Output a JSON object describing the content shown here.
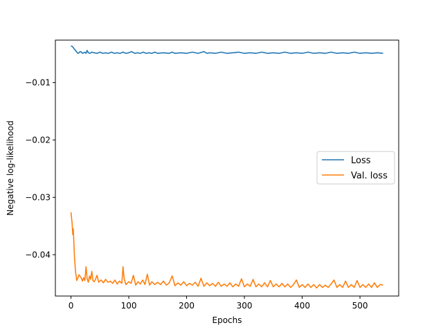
{
  "chart_data": {
    "type": "line",
    "title": "",
    "xlabel": "Epochs",
    "ylabel": "Negative log-likelihood",
    "xlim": [
      -27,
      567
    ],
    "ylim": [
      -0.0472,
      -0.0026
    ],
    "xticks": [
      0,
      100,
      200,
      300,
      400,
      500
    ],
    "yticks": [
      -0.01,
      -0.02,
      -0.03,
      -0.04
    ],
    "xtick_labels": [
      "0",
      "100",
      "200",
      "300",
      "400",
      "500"
    ],
    "ytick_labels": [
      "−0.01",
      "−0.02",
      "−0.03",
      "−0.04"
    ],
    "grid": false,
    "legend_placement": "center-right",
    "series": [
      {
        "name": "Loss",
        "color": "#1f77b4",
        "points": [
          [
            0,
            -0.0036
          ],
          [
            2,
            -0.0037
          ],
          [
            4,
            -0.0039
          ],
          [
            6,
            -0.0042
          ],
          [
            8,
            -0.0044
          ],
          [
            10,
            -0.0047
          ],
          [
            12,
            -0.0049
          ],
          [
            14,
            -0.0048
          ],
          [
            16,
            -0.0046
          ],
          [
            18,
            -0.0047
          ],
          [
            20,
            -0.0049
          ],
          [
            22,
            -0.0048
          ],
          [
            24,
            -0.0047
          ],
          [
            26,
            -0.0049
          ],
          [
            28,
            -0.0044
          ],
          [
            30,
            -0.0048
          ],
          [
            33,
            -0.0049
          ],
          [
            36,
            -0.0047
          ],
          [
            40,
            -0.0048
          ],
          [
            45,
            -0.0049
          ],
          [
            50,
            -0.0047
          ],
          [
            55,
            -0.0049
          ],
          [
            60,
            -0.0048
          ],
          [
            65,
            -0.0049
          ],
          [
            70,
            -0.0047
          ],
          [
            75,
            -0.0049
          ],
          [
            80,
            -0.0048
          ],
          [
            85,
            -0.0049
          ],
          [
            90,
            -0.0047
          ],
          [
            95,
            -0.0049
          ],
          [
            100,
            -0.0048
          ],
          [
            105,
            -0.0046
          ],
          [
            110,
            -0.0049
          ],
          [
            115,
            -0.0048
          ],
          [
            120,
            -0.0049
          ],
          [
            125,
            -0.0047
          ],
          [
            130,
            -0.0049
          ],
          [
            135,
            -0.0048
          ],
          [
            140,
            -0.0049
          ],
          [
            145,
            -0.0047
          ],
          [
            150,
            -0.0049
          ],
          [
            160,
            -0.0048
          ],
          [
            170,
            -0.0049
          ],
          [
            175,
            -0.0047
          ],
          [
            180,
            -0.0049
          ],
          [
            190,
            -0.0048
          ],
          [
            200,
            -0.0049
          ],
          [
            210,
            -0.0047
          ],
          [
            220,
            -0.0049
          ],
          [
            230,
            -0.0046
          ],
          [
            235,
            -0.0049
          ],
          [
            240,
            -0.0048
          ],
          [
            250,
            -0.0049
          ],
          [
            260,
            -0.0047
          ],
          [
            270,
            -0.0049
          ],
          [
            280,
            -0.0048
          ],
          [
            290,
            -0.0047
          ],
          [
            300,
            -0.0049
          ],
          [
            310,
            -0.0048
          ],
          [
            320,
            -0.0049
          ],
          [
            330,
            -0.0047
          ],
          [
            340,
            -0.0049
          ],
          [
            350,
            -0.0048
          ],
          [
            360,
            -0.0049
          ],
          [
            370,
            -0.0047
          ],
          [
            380,
            -0.0049
          ],
          [
            390,
            -0.0048
          ],
          [
            400,
            -0.0049
          ],
          [
            410,
            -0.0047
          ],
          [
            420,
            -0.0049
          ],
          [
            430,
            -0.0048
          ],
          [
            440,
            -0.0049
          ],
          [
            450,
            -0.0047
          ],
          [
            460,
            -0.0049
          ],
          [
            470,
            -0.0048
          ],
          [
            480,
            -0.0049
          ],
          [
            490,
            -0.0047
          ],
          [
            500,
            -0.0049
          ],
          [
            510,
            -0.0048
          ],
          [
            520,
            -0.0049
          ],
          [
            530,
            -0.0048
          ],
          [
            540,
            -0.0049
          ]
        ]
      },
      {
        "name": "Val. loss",
        "color": "#ff7f0e",
        "points": [
          [
            0,
            -0.0326
          ],
          [
            2,
            -0.0345
          ],
          [
            3,
            -0.0365
          ],
          [
            4,
            -0.0355
          ],
          [
            6,
            -0.0405
          ],
          [
            8,
            -0.043
          ],
          [
            10,
            -0.0445
          ],
          [
            12,
            -0.044
          ],
          [
            14,
            -0.0435
          ],
          [
            16,
            -0.0438
          ],
          [
            18,
            -0.0441
          ],
          [
            20,
            -0.0446
          ],
          [
            22,
            -0.044
          ],
          [
            24,
            -0.0445
          ],
          [
            26,
            -0.0421
          ],
          [
            28,
            -0.0442
          ],
          [
            30,
            -0.0448
          ],
          [
            32,
            -0.0437
          ],
          [
            34,
            -0.0443
          ],
          [
            36,
            -0.0429
          ],
          [
            38,
            -0.0445
          ],
          [
            40,
            -0.0447
          ],
          [
            42,
            -0.0444
          ],
          [
            45,
            -0.0436
          ],
          [
            48,
            -0.0448
          ],
          [
            52,
            -0.0444
          ],
          [
            56,
            -0.0449
          ],
          [
            60,
            -0.0443
          ],
          [
            64,
            -0.0448
          ],
          [
            68,
            -0.0446
          ],
          [
            72,
            -0.045
          ],
          [
            76,
            -0.0444
          ],
          [
            80,
            -0.0451
          ],
          [
            84,
            -0.0446
          ],
          [
            88,
            -0.045
          ],
          [
            90,
            -0.0421
          ],
          [
            92,
            -0.0442
          ],
          [
            95,
            -0.0452
          ],
          [
            100,
            -0.0447
          ],
          [
            104,
            -0.045
          ],
          [
            108,
            -0.0436
          ],
          [
            112,
            -0.0453
          ],
          [
            116,
            -0.0447
          ],
          [
            120,
            -0.0451
          ],
          [
            124,
            -0.0444
          ],
          [
            128,
            -0.0452
          ],
          [
            132,
            -0.0434
          ],
          [
            136,
            -0.0453
          ],
          [
            140,
            -0.0447
          ],
          [
            145,
            -0.0452
          ],
          [
            150,
            -0.0448
          ],
          [
            155,
            -0.0452
          ],
          [
            160,
            -0.0446
          ],
          [
            165,
            -0.0453
          ],
          [
            170,
            -0.0449
          ],
          [
            175,
            -0.0437
          ],
          [
            180,
            -0.0454
          ],
          [
            185,
            -0.0449
          ],
          [
            190,
            -0.0453
          ],
          [
            195,
            -0.0447
          ],
          [
            200,
            -0.0454
          ],
          [
            205,
            -0.045
          ],
          [
            210,
            -0.0453
          ],
          [
            215,
            -0.0448
          ],
          [
            220,
            -0.0455
          ],
          [
            225,
            -0.0441
          ],
          [
            230,
            -0.0455
          ],
          [
            235,
            -0.0449
          ],
          [
            240,
            -0.0454
          ],
          [
            245,
            -0.045
          ],
          [
            250,
            -0.0455
          ],
          [
            255,
            -0.0448
          ],
          [
            260,
            -0.0455
          ],
          [
            265,
            -0.0451
          ],
          [
            270,
            -0.0455
          ],
          [
            275,
            -0.0449
          ],
          [
            280,
            -0.0456
          ],
          [
            285,
            -0.0451
          ],
          [
            290,
            -0.0455
          ],
          [
            295,
            -0.0442
          ],
          [
            300,
            -0.0456
          ],
          [
            305,
            -0.0451
          ],
          [
            310,
            -0.0455
          ],
          [
            315,
            -0.0443
          ],
          [
            320,
            -0.0456
          ],
          [
            325,
            -0.0451
          ],
          [
            330,
            -0.0456
          ],
          [
            335,
            -0.0449
          ],
          [
            340,
            -0.0456
          ],
          [
            345,
            -0.0445
          ],
          [
            350,
            -0.0456
          ],
          [
            355,
            -0.0451
          ],
          [
            360,
            -0.0456
          ],
          [
            365,
            -0.045
          ],
          [
            370,
            -0.0456
          ],
          [
            375,
            -0.0451
          ],
          [
            380,
            -0.0457
          ],
          [
            385,
            -0.0452
          ],
          [
            390,
            -0.0444
          ],
          [
            395,
            -0.0457
          ],
          [
            400,
            -0.0452
          ],
          [
            405,
            -0.0457
          ],
          [
            410,
            -0.0451
          ],
          [
            415,
            -0.0457
          ],
          [
            420,
            -0.0452
          ],
          [
            425,
            -0.0458
          ],
          [
            430,
            -0.0452
          ],
          [
            435,
            -0.0457
          ],
          [
            440,
            -0.0453
          ],
          [
            445,
            -0.0457
          ],
          [
            450,
            -0.0451
          ],
          [
            455,
            -0.0444
          ],
          [
            460,
            -0.0457
          ],
          [
            465,
            -0.0452
          ],
          [
            470,
            -0.0457
          ],
          [
            475,
            -0.0446
          ],
          [
            480,
            -0.0457
          ],
          [
            485,
            -0.0452
          ],
          [
            490,
            -0.0457
          ],
          [
            495,
            -0.0445
          ],
          [
            500,
            -0.0457
          ],
          [
            505,
            -0.0452
          ],
          [
            510,
            -0.0457
          ],
          [
            515,
            -0.0451
          ],
          [
            520,
            -0.0457
          ],
          [
            525,
            -0.0449
          ],
          [
            530,
            -0.0457
          ],
          [
            535,
            -0.0452
          ],
          [
            540,
            -0.0453
          ]
        ]
      }
    ]
  }
}
